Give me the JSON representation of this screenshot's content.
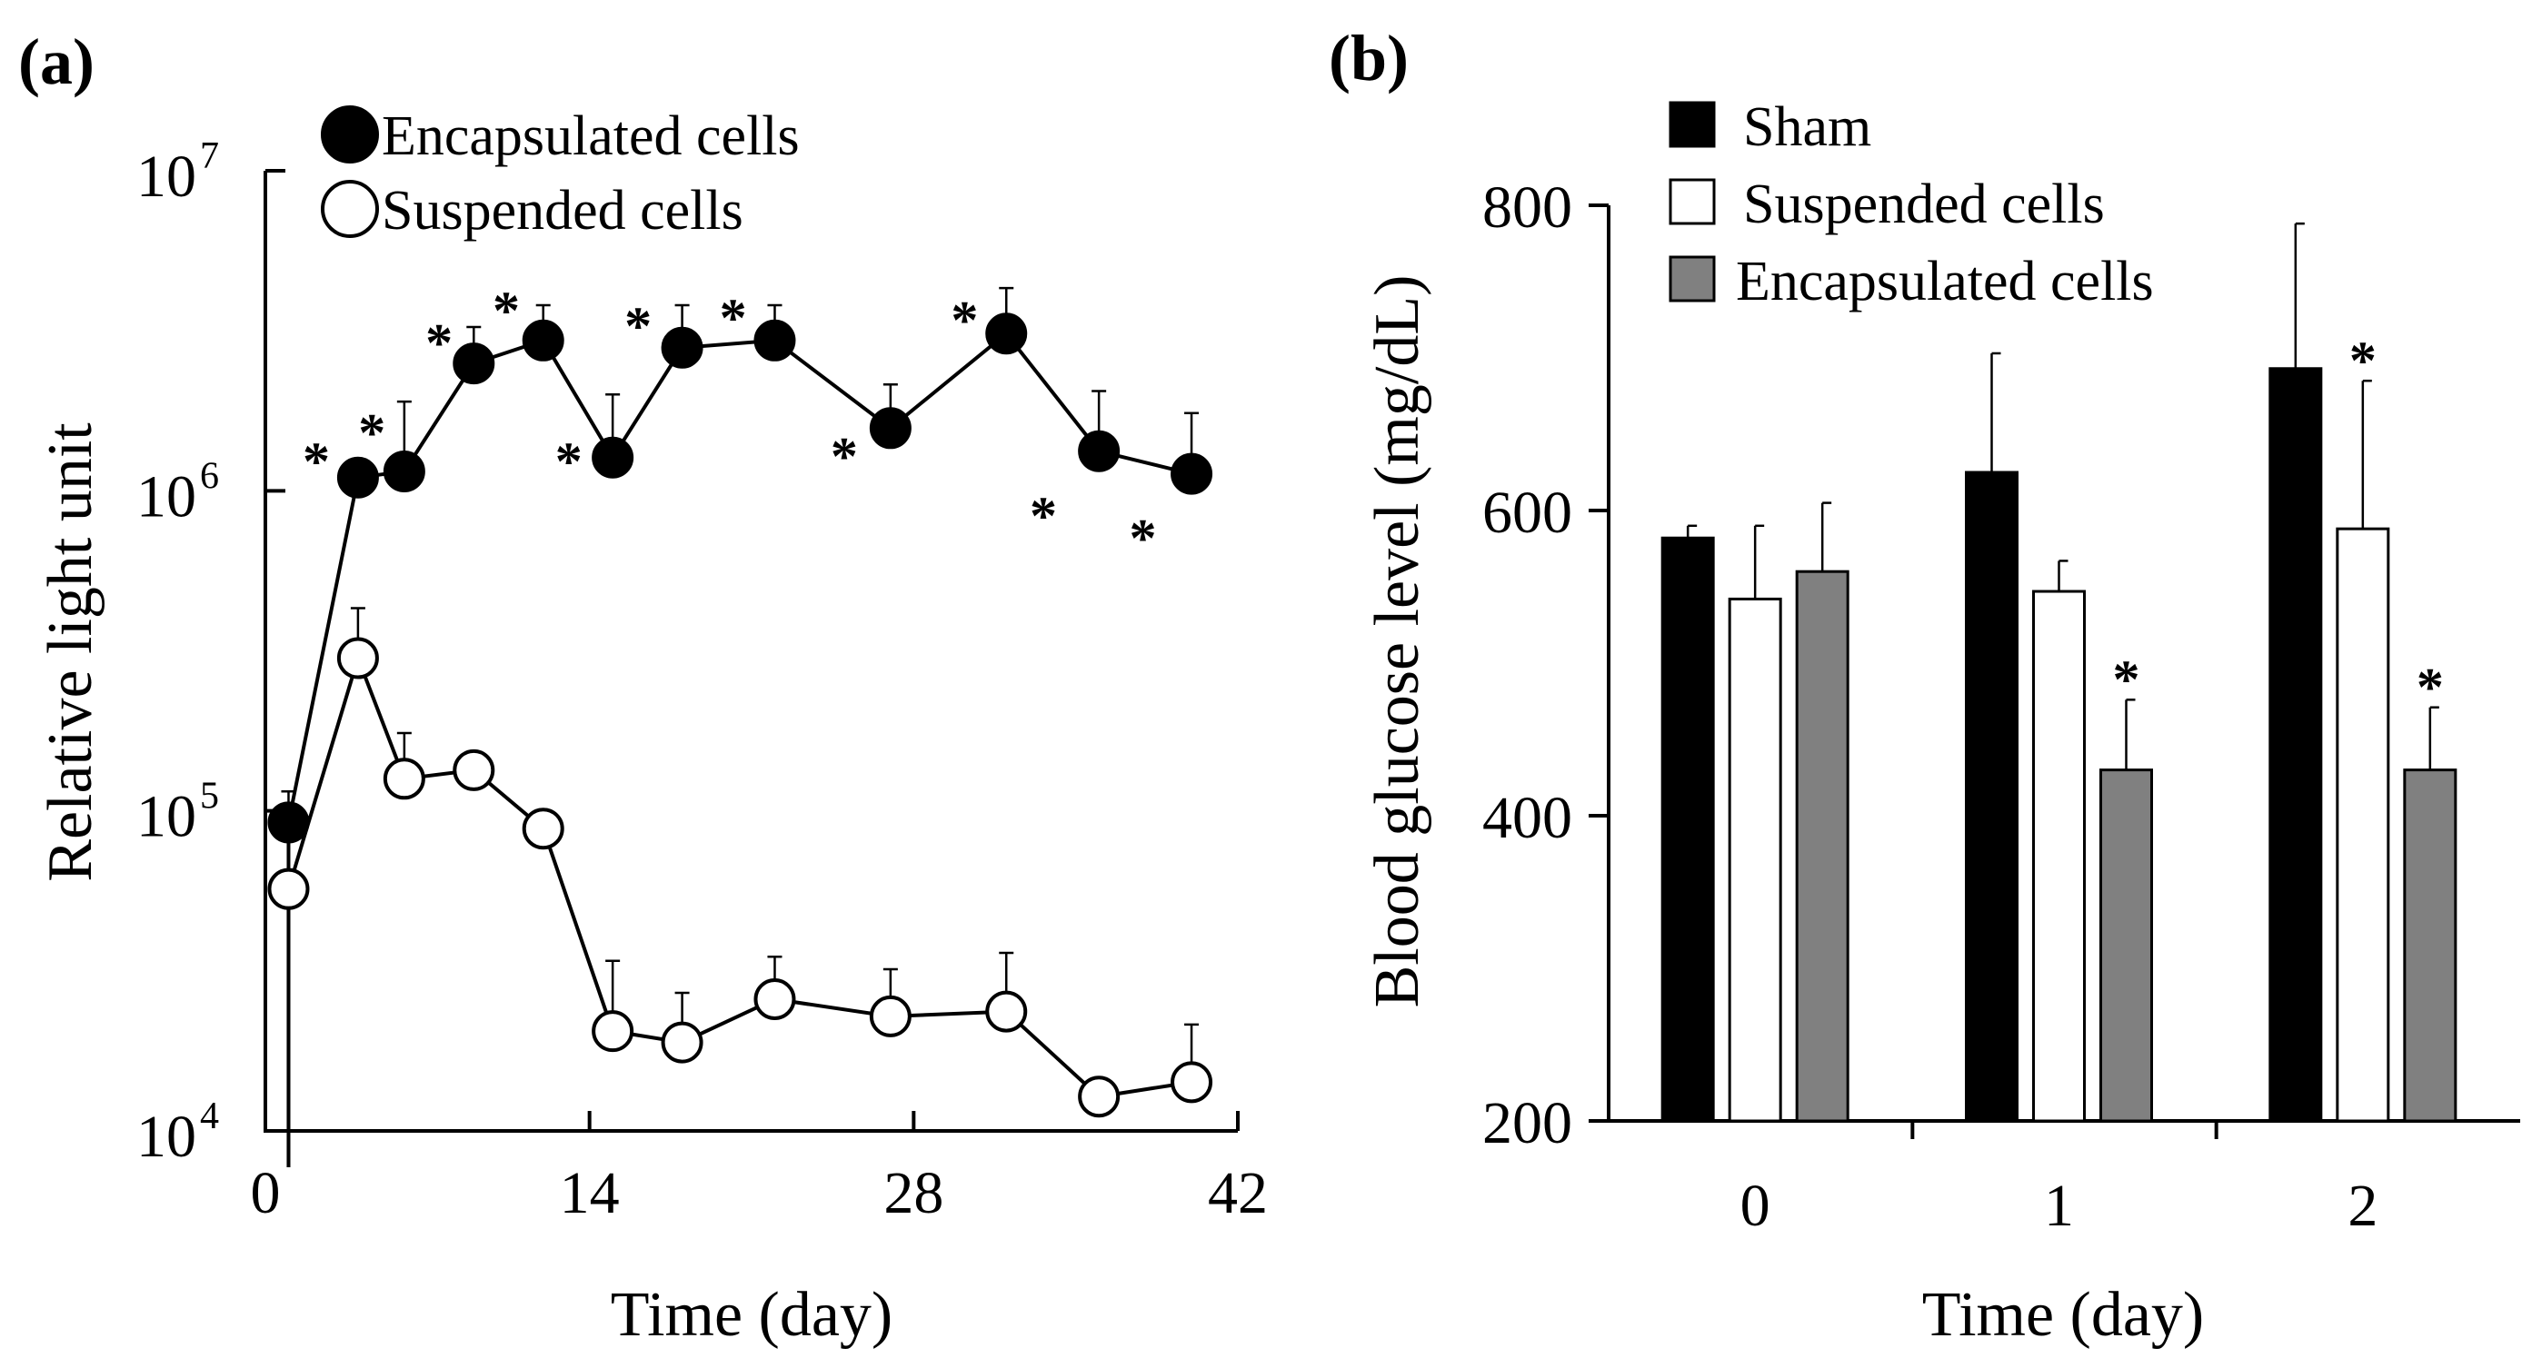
{
  "colors": {
    "ink": "#000000",
    "encapsulated_bar": "#808080",
    "open_fill": "#ffffff"
  },
  "chart_data": [
    {
      "type": "line",
      "panel_label": "(a)",
      "xlabel": "Time (day)",
      "ylabel": "Relative light unit",
      "yscale": "log",
      "xlim": [
        0,
        42
      ],
      "ylim": [
        10000,
        10000000
      ],
      "xticks": [
        "0",
        "14",
        "28",
        "42"
      ],
      "yticks": [
        {
          "base": "10",
          "exp": "4"
        },
        {
          "base": "10",
          "exp": "5"
        },
        {
          "base": "10",
          "exp": "6"
        },
        {
          "base": "10",
          "exp": "7"
        }
      ],
      "legend": [
        "Encapsulated cells",
        "Suspended cells"
      ],
      "series": [
        {
          "name": "Encapsulated cells",
          "marker": "filled-circle",
          "x": [
            1,
            4,
            6,
            9,
            12,
            15,
            18,
            22,
            27,
            32,
            36,
            40
          ],
          "y": [
            92000,
            1100000,
            1150000,
            2500000,
            2950000,
            1270000,
            2800000,
            2950000,
            1570000,
            3100000,
            1330000,
            1130000
          ],
          "err": [
            115000,
            null,
            1900000,
            3250000,
            3800000,
            2000000,
            3800000,
            3800000,
            2150000,
            4300000,
            2050000,
            1750000
          ]
        },
        {
          "name": "Suspended cells",
          "marker": "open-circle",
          "x": [
            1,
            4,
            6,
            9,
            12,
            15,
            18,
            22,
            27,
            32,
            36,
            40
          ],
          "y": [
            57000,
            300000,
            126000,
            134000,
            88000,
            20500,
            18900,
            25800,
            22800,
            23600,
            12800,
            14200
          ],
          "err": [
            null,
            430000,
            175000,
            null,
            null,
            34000,
            27000,
            35000,
            32000,
            36000,
            null,
            21500
          ]
        }
      ],
      "annotations": [
        {
          "text": "*",
          "x": 2.2,
          "y": 1300000
        },
        {
          "text": "*",
          "x": 4.6,
          "y": 1600000
        },
        {
          "text": "*",
          "x": 7.5,
          "y": 3050000
        },
        {
          "text": "*",
          "x": 10.4,
          "y": 3850000
        },
        {
          "text": "*",
          "x": 13.1,
          "y": 1300000
        },
        {
          "text": "*",
          "x": 16.1,
          "y": 3450000
        },
        {
          "text": "*",
          "x": 20.2,
          "y": 3650000
        },
        {
          "text": "*",
          "x": 25.0,
          "y": 1350000
        },
        {
          "text": "*",
          "x": 30.2,
          "y": 3600000
        },
        {
          "text": "*",
          "x": 33.6,
          "y": 880000
        },
        {
          "text": "*",
          "x": 37.9,
          "y": 750000
        }
      ]
    },
    {
      "type": "bar",
      "panel_label": "(b)",
      "xlabel": "Time (day)",
      "ylabel": "Blood glucose level (mg/dL)",
      "ylim": [
        200,
        800
      ],
      "yticks": [
        "200",
        "400",
        "600",
        "800"
      ],
      "categories": [
        "0",
        "1",
        "2"
      ],
      "series": [
        {
          "name": "Sham",
          "fill": "#000000",
          "values": [
            582,
            625,
            693
          ],
          "err": [
            590,
            703,
            788
          ]
        },
        {
          "name": "Suspended cells",
          "fill": "#ffffff",
          "values": [
            542,
            547,
            588
          ],
          "err": [
            590,
            567,
            685
          ]
        },
        {
          "name": "Encapsulated cells",
          "fill": "#808080",
          "values": [
            560,
            430,
            430
          ],
          "err": [
            605,
            476,
            471
          ]
        }
      ],
      "legend": [
        "Sham",
        "Suspended cells",
        "Encapsulated cells"
      ],
      "annotations": [
        {
          "text": "*",
          "category": "1",
          "series": "Encapsulated cells",
          "y": 494
        },
        {
          "text": "*",
          "category": "2",
          "series": "Suspended cells",
          "y": 703
        },
        {
          "text": "*",
          "category": "2",
          "series": "Encapsulated cells",
          "y": 489
        }
      ]
    }
  ]
}
